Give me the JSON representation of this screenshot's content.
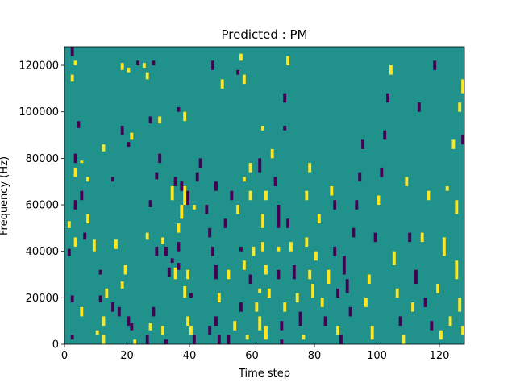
{
  "chart_data": {
    "type": "heatmap",
    "title": "Predicted : PM",
    "xlabel": "Time step",
    "ylabel": "Frequency (Hz)",
    "xlim": [
      0,
      128
    ],
    "ylim": [
      0,
      128000
    ],
    "x_ticks": [
      0,
      20,
      40,
      60,
      80,
      100,
      120
    ],
    "y_ticks": [
      0,
      20000,
      40000,
      60000,
      80000,
      100000,
      120000
    ],
    "colors": {
      "background": "#21918c",
      "high": "#fde725",
      "low": "#440154"
    },
    "grid": false,
    "note_cells": [
      {
        "t": 2,
        "f0": 124000,
        "f1": 128000,
        "v": "low"
      },
      {
        "t": 3,
        "f0": 120000,
        "f1": 122000,
        "v": "high"
      },
      {
        "t": 2,
        "f0": 113000,
        "f1": 116000,
        "v": "high"
      },
      {
        "t": 4,
        "f0": 93000,
        "f1": 96000,
        "v": "low"
      },
      {
        "t": 3,
        "f0": 78000,
        "f1": 82000,
        "v": "low"
      },
      {
        "t": 5,
        "f0": 78000,
        "f1": 79000,
        "v": "high"
      },
      {
        "t": 3,
        "f0": 72000,
        "f1": 76000,
        "v": "high"
      },
      {
        "t": 5,
        "f0": 62000,
        "f1": 66000,
        "v": "low"
      },
      {
        "t": 3,
        "f0": 58000,
        "f1": 62000,
        "v": "low"
      },
      {
        "t": 1,
        "f0": 50000,
        "f1": 53000,
        "v": "high"
      },
      {
        "t": 3,
        "f0": 42000,
        "f1": 46000,
        "v": "high"
      },
      {
        "t": 1,
        "f0": 38000,
        "f1": 41000,
        "v": "low"
      },
      {
        "t": 2,
        "f0": 18000,
        "f1": 21000,
        "v": "low"
      },
      {
        "t": 5,
        "f0": 12000,
        "f1": 16000,
        "v": "high"
      },
      {
        "t": 2,
        "f0": 2000,
        "f1": 4000,
        "v": "low"
      },
      {
        "t": 7,
        "f0": 70000,
        "f1": 72000,
        "v": "high"
      },
      {
        "t": 6,
        "f0": 45000,
        "f1": 48000,
        "v": "low"
      },
      {
        "t": 7,
        "f0": 52000,
        "f1": 56000,
        "v": "high"
      },
      {
        "t": 9,
        "f0": 40000,
        "f1": 45000,
        "v": "high"
      },
      {
        "t": 11,
        "f0": 30000,
        "f1": 32000,
        "v": "low"
      },
      {
        "t": 11,
        "f0": 18000,
        "f1": 21000,
        "v": "low"
      },
      {
        "t": 12,
        "f0": 8000,
        "f1": 12000,
        "v": "high"
      },
      {
        "t": 10,
        "f0": 4000,
        "f1": 6000,
        "v": "high"
      },
      {
        "t": 12,
        "f0": 0,
        "f1": 4000,
        "v": "high"
      },
      {
        "t": 13,
        "f0": 20000,
        "f1": 24000,
        "v": "high"
      },
      {
        "t": 15,
        "f0": 14000,
        "f1": 18000,
        "v": "low"
      },
      {
        "t": 12,
        "f0": 83000,
        "f1": 86000,
        "v": "high"
      },
      {
        "t": 15,
        "f0": 70000,
        "f1": 72000,
        "v": "low"
      },
      {
        "t": 16,
        "f0": 41000,
        "f1": 45000,
        "v": "high"
      },
      {
        "t": 18,
        "f0": 24000,
        "f1": 27000,
        "v": "high"
      },
      {
        "t": 19,
        "f0": 30000,
        "f1": 34000,
        "v": "high"
      },
      {
        "t": 17,
        "f0": 12000,
        "f1": 16000,
        "v": "low"
      },
      {
        "t": 21,
        "f0": 6000,
        "f1": 9000,
        "v": "low"
      },
      {
        "t": 22,
        "f0": 0,
        "f1": 2000,
        "v": "high"
      },
      {
        "t": 20,
        "f0": 8000,
        "f1": 12000,
        "v": "low"
      },
      {
        "t": 18,
        "f0": 118000,
        "f1": 121000,
        "v": "high"
      },
      {
        "t": 20,
        "f0": 117000,
        "f1": 119000,
        "v": "high"
      },
      {
        "t": 23,
        "f0": 120000,
        "f1": 122000,
        "v": "low"
      },
      {
        "t": 18,
        "f0": 90000,
        "f1": 94000,
        "v": "low"
      },
      {
        "t": 21,
        "f0": 88000,
        "f1": 91000,
        "v": "high"
      },
      {
        "t": 20,
        "f0": 85000,
        "f1": 87000,
        "v": "low"
      },
      {
        "t": 25,
        "f0": 119000,
        "f1": 121000,
        "v": "high"
      },
      {
        "t": 26,
        "f0": 114000,
        "f1": 117000,
        "v": "high"
      },
      {
        "t": 28,
        "f0": 120000,
        "f1": 122000,
        "v": "low"
      },
      {
        "t": 27,
        "f0": 95000,
        "f1": 98000,
        "v": "low"
      },
      {
        "t": 30,
        "f0": 95000,
        "f1": 98000,
        "v": "high"
      },
      {
        "t": 29,
        "f0": 71000,
        "f1": 74000,
        "v": "low"
      },
      {
        "t": 30,
        "f0": 78000,
        "f1": 82000,
        "v": "low"
      },
      {
        "t": 27,
        "f0": 59000,
        "f1": 62000,
        "v": "low"
      },
      {
        "t": 26,
        "f0": 45000,
        "f1": 48000,
        "v": "high"
      },
      {
        "t": 29,
        "f0": 38000,
        "f1": 42000,
        "v": "low"
      },
      {
        "t": 31,
        "f0": 43000,
        "f1": 46000,
        "v": "high"
      },
      {
        "t": 32,
        "f0": 38000,
        "f1": 42000,
        "v": "low"
      },
      {
        "t": 33,
        "f0": 29000,
        "f1": 33000,
        "v": "low"
      },
      {
        "t": 34,
        "f0": 35000,
        "f1": 37000,
        "v": "low"
      },
      {
        "t": 35,
        "f0": 28000,
        "f1": 33000,
        "v": "high"
      },
      {
        "t": 36,
        "f0": 32000,
        "f1": 35000,
        "v": "low"
      },
      {
        "t": 27,
        "f0": 6000,
        "f1": 9000,
        "v": "high"
      },
      {
        "t": 28,
        "f0": 12000,
        "f1": 16000,
        "v": "low"
      },
      {
        "t": 26,
        "f0": 0,
        "f1": 4000,
        "v": "low"
      },
      {
        "t": 31,
        "f0": 4000,
        "f1": 8000,
        "v": "high"
      },
      {
        "t": 32,
        "f0": 0,
        "f1": 2000,
        "v": "low"
      },
      {
        "t": 36,
        "f0": 40000,
        "f1": 44000,
        "v": "low"
      },
      {
        "t": 36,
        "f0": 48000,
        "f1": 52000,
        "v": "high"
      },
      {
        "t": 37,
        "f0": 54000,
        "f1": 60000,
        "v": "high"
      },
      {
        "t": 38,
        "f0": 60000,
        "f1": 68000,
        "v": "high"
      },
      {
        "t": 39,
        "f0": 60000,
        "f1": 66000,
        "v": "low"
      },
      {
        "t": 34,
        "f0": 62000,
        "f1": 68000,
        "v": "high"
      },
      {
        "t": 35,
        "f0": 68000,
        "f1": 72000,
        "v": "low"
      },
      {
        "t": 37,
        "f0": 66000,
        "f1": 70000,
        "v": "low"
      },
      {
        "t": 38,
        "f0": 96000,
        "f1": 100000,
        "v": "high"
      },
      {
        "t": 36,
        "f0": 100000,
        "f1": 102000,
        "v": "low"
      },
      {
        "t": 38,
        "f0": 20000,
        "f1": 25000,
        "v": "high"
      },
      {
        "t": 39,
        "f0": 8000,
        "f1": 12000,
        "v": "high"
      },
      {
        "t": 40,
        "f0": 4000,
        "f1": 8000,
        "v": "high"
      },
      {
        "t": 39,
        "f0": 28000,
        "f1": 32000,
        "v": "high"
      },
      {
        "t": 40,
        "f0": 20000,
        "f1": 22000,
        "v": "low"
      },
      {
        "t": 41,
        "f0": 0,
        "f1": 4000,
        "v": "low"
      },
      {
        "t": 41,
        "f0": 58000,
        "f1": 60000,
        "v": "high"
      },
      {
        "t": 42,
        "f0": 70000,
        "f1": 74000,
        "v": "low"
      },
      {
        "t": 43,
        "f0": 76000,
        "f1": 80000,
        "v": "low"
      },
      {
        "t": 45,
        "f0": 56000,
        "f1": 60000,
        "v": "low"
      },
      {
        "t": 46,
        "f0": 46000,
        "f1": 50000,
        "v": "low"
      },
      {
        "t": 47,
        "f0": 38000,
        "f1": 42000,
        "v": "low"
      },
      {
        "t": 48,
        "f0": 28000,
        "f1": 34000,
        "v": "low"
      },
      {
        "t": 49,
        "f0": 18000,
        "f1": 22000,
        "v": "high"
      },
      {
        "t": 48,
        "f0": 8000,
        "f1": 12000,
        "v": "low"
      },
      {
        "t": 49,
        "f0": 0,
        "f1": 4000,
        "v": "low"
      },
      {
        "t": 46,
        "f0": 4000,
        "f1": 8000,
        "v": "low"
      },
      {
        "t": 48,
        "f0": 66000,
        "f1": 70000,
        "v": "low"
      },
      {
        "t": 47,
        "f0": 118000,
        "f1": 122000,
        "v": "low"
      },
      {
        "t": 50,
        "f0": 110000,
        "f1": 114000,
        "v": "high"
      },
      {
        "t": 51,
        "f0": 50000,
        "f1": 54000,
        "v": "low"
      },
      {
        "t": 52,
        "f0": 28000,
        "f1": 32000,
        "v": "high"
      },
      {
        "t": 52,
        "f0": 0,
        "f1": 4000,
        "v": "low"
      },
      {
        "t": 54,
        "f0": 6000,
        "f1": 10000,
        "v": "high"
      },
      {
        "t": 53,
        "f0": 62000,
        "f1": 66000,
        "v": "low"
      },
      {
        "t": 55,
        "f0": 56000,
        "f1": 60000,
        "v": "high"
      },
      {
        "t": 55,
        "f0": 116000,
        "f1": 118000,
        "v": "low"
      },
      {
        "t": 56,
        "f0": 122000,
        "f1": 125000,
        "v": "high"
      },
      {
        "t": 57,
        "f0": 112000,
        "f1": 116000,
        "v": "high"
      },
      {
        "t": 57,
        "f0": 70000,
        "f1": 72000,
        "v": "high"
      },
      {
        "t": 56,
        "f0": 40000,
        "f1": 42000,
        "v": "low"
      },
      {
        "t": 57,
        "f0": 32000,
        "f1": 36000,
        "v": "high"
      },
      {
        "t": 56,
        "f0": 14000,
        "f1": 18000,
        "v": "low"
      },
      {
        "t": 58,
        "f0": 2000,
        "f1": 4000,
        "v": "high"
      },
      {
        "t": 59,
        "f0": 26000,
        "f1": 30000,
        "v": "low"
      },
      {
        "t": 59,
        "f0": 74000,
        "f1": 78000,
        "v": "high"
      },
      {
        "t": 59,
        "f0": 62000,
        "f1": 66000,
        "v": "high"
      },
      {
        "t": 60,
        "f0": 38000,
        "f1": 42000,
        "v": "high"
      },
      {
        "t": 61,
        "f0": 14000,
        "f1": 18000,
        "v": "high"
      },
      {
        "t": 62,
        "f0": 22000,
        "f1": 24000,
        "v": "high"
      },
      {
        "t": 62,
        "f0": 6000,
        "f1": 12000,
        "v": "high"
      },
      {
        "t": 63,
        "f0": 50000,
        "f1": 56000,
        "v": "high"
      },
      {
        "t": 63,
        "f0": 40000,
        "f1": 44000,
        "v": "high"
      },
      {
        "t": 64,
        "f0": 30000,
        "f1": 34000,
        "v": "high"
      },
      {
        "t": 64,
        "f0": 2000,
        "f1": 8000,
        "v": "high"
      },
      {
        "t": 62,
        "f0": 74000,
        "f1": 80000,
        "v": "low"
      },
      {
        "t": 63,
        "f0": 92000,
        "f1": 94000,
        "v": "high"
      },
      {
        "t": 64,
        "f0": 62000,
        "f1": 66000,
        "v": "high"
      },
      {
        "t": 65,
        "f0": 20000,
        "f1": 24000,
        "v": "high"
      },
      {
        "t": 66,
        "f0": 80000,
        "f1": 84000,
        "v": "high"
      },
      {
        "t": 67,
        "f0": 68000,
        "f1": 72000,
        "v": "low"
      },
      {
        "t": 68,
        "f0": 50000,
        "f1": 60000,
        "v": "low"
      },
      {
        "t": 68,
        "f0": 40000,
        "f1": 42000,
        "v": "high"
      },
      {
        "t": 68,
        "f0": 28000,
        "f1": 32000,
        "v": "low"
      },
      {
        "t": 69,
        "f0": 6000,
        "f1": 10000,
        "v": "low"
      },
      {
        "t": 69,
        "f0": 0,
        "f1": 2000,
        "v": "low"
      },
      {
        "t": 70,
        "f0": 14000,
        "f1": 18000,
        "v": "high"
      },
      {
        "t": 70,
        "f0": 104000,
        "f1": 108000,
        "v": "low"
      },
      {
        "t": 70,
        "f0": 92000,
        "f1": 94000,
        "v": "low"
      },
      {
        "t": 71,
        "f0": 120000,
        "f1": 124000,
        "v": "high"
      },
      {
        "t": 71,
        "f0": 50000,
        "f1": 54000,
        "v": "low"
      },
      {
        "t": 72,
        "f0": 40000,
        "f1": 44000,
        "v": "high"
      },
      {
        "t": 73,
        "f0": 28000,
        "f1": 34000,
        "v": "low"
      },
      {
        "t": 74,
        "f0": 18000,
        "f1": 22000,
        "v": "high"
      },
      {
        "t": 75,
        "f0": 8000,
        "f1": 14000,
        "v": "low"
      },
      {
        "t": 76,
        "f0": 2000,
        "f1": 4000,
        "v": "high"
      },
      {
        "t": 77,
        "f0": 42000,
        "f1": 46000,
        "v": "high"
      },
      {
        "t": 77,
        "f0": 62000,
        "f1": 66000,
        "v": "high"
      },
      {
        "t": 78,
        "f0": 74000,
        "f1": 78000,
        "v": "high"
      },
      {
        "t": 78,
        "f0": 28000,
        "f1": 32000,
        "v": "high"
      },
      {
        "t": 79,
        "f0": 20000,
        "f1": 26000,
        "v": "high"
      },
      {
        "t": 80,
        "f0": 36000,
        "f1": 40000,
        "v": "high"
      },
      {
        "t": 81,
        "f0": 52000,
        "f1": 56000,
        "v": "high"
      },
      {
        "t": 82,
        "f0": 16000,
        "f1": 20000,
        "v": "high"
      },
      {
        "t": 83,
        "f0": 8000,
        "f1": 12000,
        "v": "low"
      },
      {
        "t": 84,
        "f0": 26000,
        "f1": 32000,
        "v": "high"
      },
      {
        "t": 85,
        "f0": 64000,
        "f1": 68000,
        "v": "high"
      },
      {
        "t": 86,
        "f0": 58000,
        "f1": 62000,
        "v": "low"
      },
      {
        "t": 86,
        "f0": 38000,
        "f1": 42000,
        "v": "low"
      },
      {
        "t": 87,
        "f0": 20000,
        "f1": 24000,
        "v": "low"
      },
      {
        "t": 87,
        "f0": 4000,
        "f1": 8000,
        "v": "high"
      },
      {
        "t": 88,
        "f0": 0,
        "f1": 4000,
        "v": "low"
      },
      {
        "t": 89,
        "f0": 30000,
        "f1": 38000,
        "v": "low"
      },
      {
        "t": 90,
        "f0": 22000,
        "f1": 28000,
        "v": "low"
      },
      {
        "t": 91,
        "f0": 12000,
        "f1": 16000,
        "v": "low"
      },
      {
        "t": 92,
        "f0": 46000,
        "f1": 50000,
        "v": "low"
      },
      {
        "t": 93,
        "f0": 58000,
        "f1": 62000,
        "v": "low"
      },
      {
        "t": 94,
        "f0": 70000,
        "f1": 74000,
        "v": "low"
      },
      {
        "t": 95,
        "f0": 84000,
        "f1": 88000,
        "v": "low"
      },
      {
        "t": 96,
        "f0": 16000,
        "f1": 20000,
        "v": "high"
      },
      {
        "t": 97,
        "f0": 26000,
        "f1": 30000,
        "v": "high"
      },
      {
        "t": 98,
        "f0": 2000,
        "f1": 8000,
        "v": "high"
      },
      {
        "t": 99,
        "f0": 44000,
        "f1": 48000,
        "v": "low"
      },
      {
        "t": 100,
        "f0": 60000,
        "f1": 64000,
        "v": "high"
      },
      {
        "t": 101,
        "f0": 72000,
        "f1": 76000,
        "v": "low"
      },
      {
        "t": 102,
        "f0": 88000,
        "f1": 92000,
        "v": "low"
      },
      {
        "t": 103,
        "f0": 104000,
        "f1": 108000,
        "v": "low"
      },
      {
        "t": 104,
        "f0": 116000,
        "f1": 120000,
        "v": "high"
      },
      {
        "t": 105,
        "f0": 34000,
        "f1": 40000,
        "v": "high"
      },
      {
        "t": 106,
        "f0": 20000,
        "f1": 24000,
        "v": "high"
      },
      {
        "t": 107,
        "f0": 8000,
        "f1": 12000,
        "v": "low"
      },
      {
        "t": 108,
        "f0": 0,
        "f1": 4000,
        "v": "high"
      },
      {
        "t": 109,
        "f0": 68000,
        "f1": 72000,
        "v": "high"
      },
      {
        "t": 110,
        "f0": 44000,
        "f1": 48000,
        "v": "low"
      },
      {
        "t": 111,
        "f0": 14000,
        "f1": 18000,
        "v": "high"
      },
      {
        "t": 112,
        "f0": 26000,
        "f1": 32000,
        "v": "low"
      },
      {
        "t": 113,
        "f0": 100000,
        "f1": 104000,
        "v": "low"
      },
      {
        "t": 114,
        "f0": 44000,
        "f1": 48000,
        "v": "high"
      },
      {
        "t": 115,
        "f0": 16000,
        "f1": 20000,
        "v": "low"
      },
      {
        "t": 116,
        "f0": 62000,
        "f1": 66000,
        "v": "high"
      },
      {
        "t": 117,
        "f0": 6000,
        "f1": 10000,
        "v": "low"
      },
      {
        "t": 118,
        "f0": 118000,
        "f1": 122000,
        "v": "low"
      },
      {
        "t": 119,
        "f0": 22000,
        "f1": 26000,
        "v": "high"
      },
      {
        "t": 120,
        "f0": 2000,
        "f1": 6000,
        "v": "high"
      },
      {
        "t": 121,
        "f0": 38000,
        "f1": 46000,
        "v": "high"
      },
      {
        "t": 122,
        "f0": 66000,
        "f1": 68000,
        "v": "high"
      },
      {
        "t": 123,
        "f0": 8000,
        "f1": 12000,
        "v": "high"
      },
      {
        "t": 124,
        "f0": 84000,
        "f1": 88000,
        "v": "high"
      },
      {
        "t": 125,
        "f0": 28000,
        "f1": 36000,
        "v": "high"
      },
      {
        "t": 125,
        "f0": 56000,
        "f1": 62000,
        "v": "high"
      },
      {
        "t": 126,
        "f0": 14000,
        "f1": 20000,
        "v": "high"
      },
      {
        "t": 126,
        "f0": 100000,
        "f1": 104000,
        "v": "high"
      },
      {
        "t": 127,
        "f0": 86000,
        "f1": 90000,
        "v": "low"
      },
      {
        "t": 127,
        "f0": 4000,
        "f1": 8000,
        "v": "high"
      },
      {
        "t": 127,
        "f0": 108000,
        "f1": 114000,
        "v": "high"
      }
    ]
  }
}
